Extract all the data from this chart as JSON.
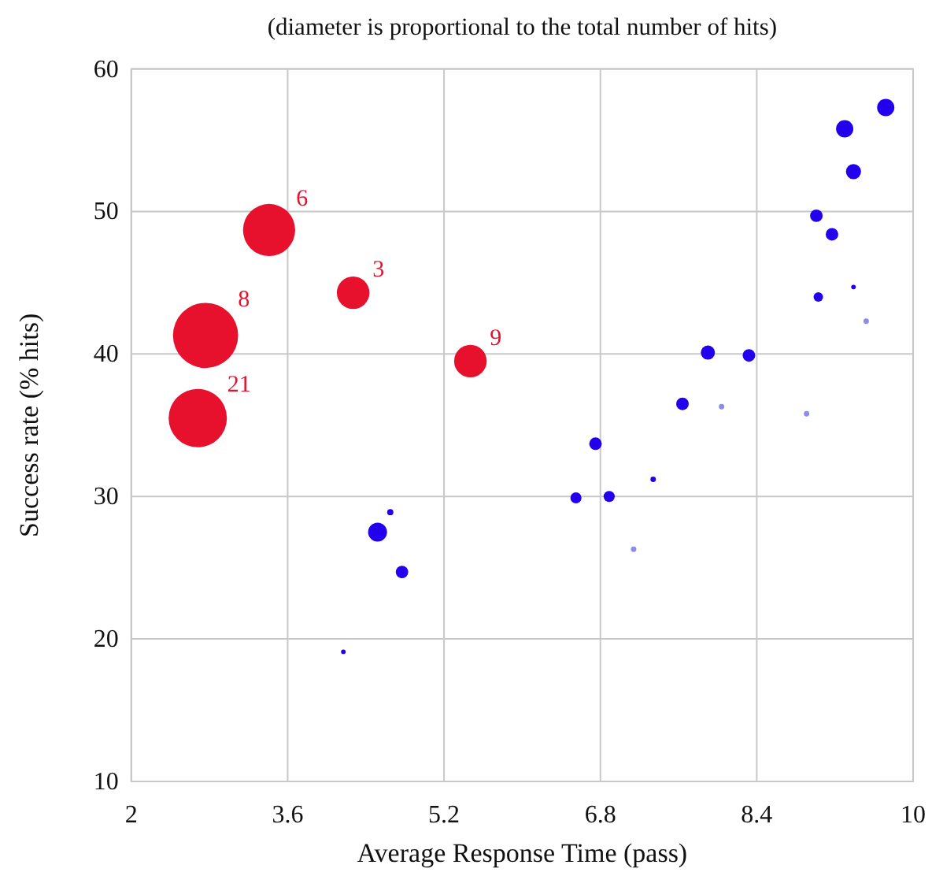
{
  "chart_data": {
    "type": "bubble",
    "title": "(diameter is proportional to the total number of hits)",
    "xlabel": "Average Response Time (pass)",
    "ylabel": "Success rate (% hits)",
    "xlim": [
      2,
      10
    ],
    "xticks": [
      2,
      3.6,
      5.2,
      6.8,
      8.4,
      10
    ],
    "ylim": [
      10,
      60
    ],
    "yticks": [
      10,
      20,
      30,
      40,
      50,
      60
    ],
    "grid": true,
    "series": [
      {
        "color": "#e8112d",
        "x": [
          3.41,
          4.27,
          2.76,
          5.47,
          2.68
        ],
        "values": [
          48.7,
          44.3,
          41.3,
          39.5,
          35.5
        ],
        "sizes": [
          0.64,
          0.25,
          1,
          0.25,
          0.8
        ]
      },
      {
        "color": "#2200ee",
        "x": [
          9.72,
          9.3,
          9.39,
          9.01,
          9.17,
          9.03,
          9.39,
          7.9,
          8.32,
          7.64,
          6.75,
          6.55,
          6.89,
          7.34,
          4.65,
          4.52,
          4.77,
          4.17
        ],
        "values": [
          57.3,
          55.8,
          52.8,
          49.7,
          48.4,
          44,
          44.7,
          40.1,
          39.9,
          36.5,
          33.7,
          29.9,
          30,
          31.2,
          28.9,
          27.5,
          24.7,
          19.1
        ],
        "sizes": [
          0.07,
          0.07,
          0.054,
          0.037,
          0.037,
          0.021,
          0.005,
          0.047,
          0.037,
          0.037,
          0.037,
          0.029,
          0.029,
          0.007,
          0.009,
          0.084,
          0.037,
          0.005
        ]
      },
      {
        "color": "#8c8cec",
        "x": [
          9.52,
          8.04,
          8.91,
          7.14
        ],
        "values": [
          42.3,
          36.3,
          35.8,
          26.3
        ],
        "sizes": [
          0.007,
          0.007,
          0.007,
          0.007
        ]
      }
    ],
    "annotations": [
      {
        "text": "6",
        "x": 3.41,
        "y": 48.7
      },
      {
        "text": "3",
        "x": 4.27,
        "y": 44.3
      },
      {
        "text": "8",
        "x": 2.76,
        "y": 41.3
      },
      {
        "text": "9",
        "x": 5.47,
        "y": 39.5
      },
      {
        "text": "21",
        "x": 2.68,
        "y": 35.5
      }
    ]
  }
}
